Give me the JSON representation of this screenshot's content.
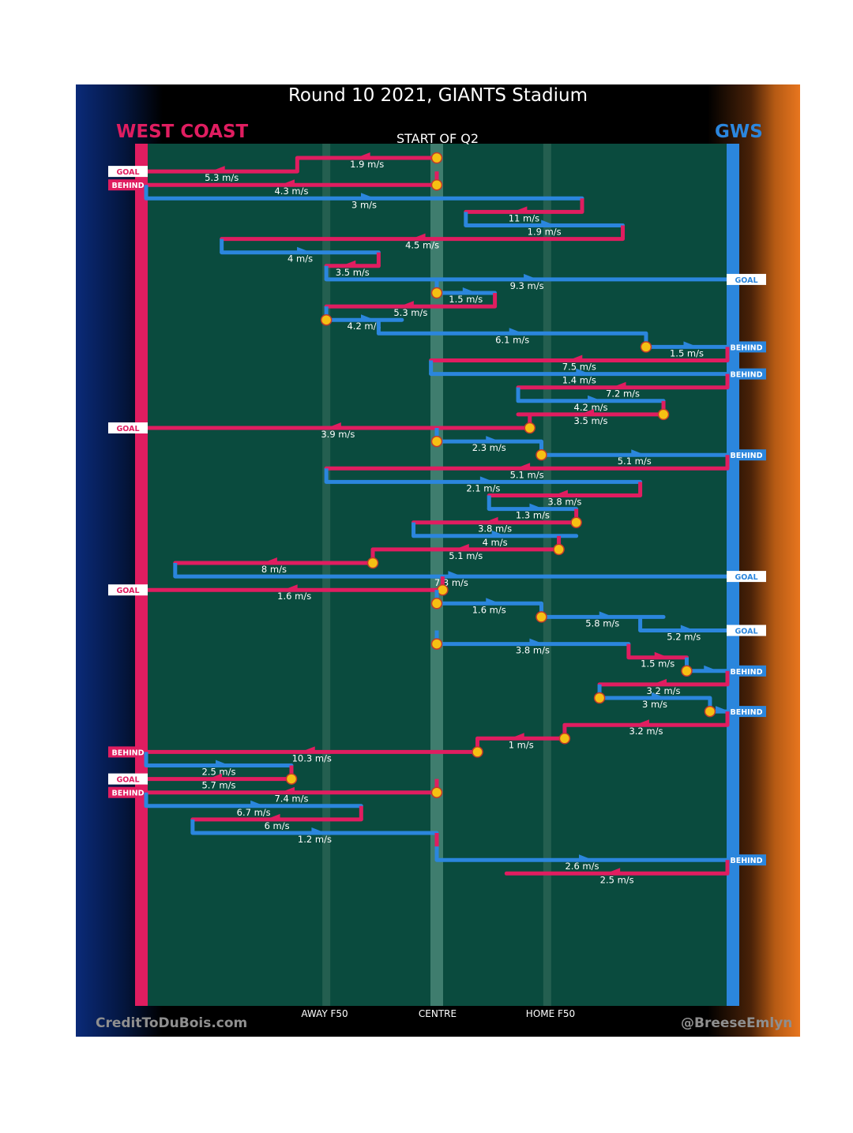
{
  "title": "Round 10 2021, GIANTS Stadium",
  "subtitle": "START OF Q2",
  "teams": {
    "left": "WEST COAST",
    "right": "GWS"
  },
  "zones": {
    "away": "AWAY F50",
    "centre": "CENTRE",
    "home": "HOME F50"
  },
  "credits": {
    "left": "CreditToDuBois.com",
    "right": "@BreeseEmlyn"
  },
  "colors": {
    "west_coast": "#e01d60",
    "gws": "#2b86dd",
    "field": "#0a4b3e",
    "stoppage": "#f5c013"
  },
  "chart_data": {
    "type": "ball-movement-chain",
    "description": "Vertical field with WEST COAST goal at left, GWS goal at right; chains of possession with average speed labels",
    "field_position_scale": {
      "left_goal": 0,
      "away_f50": 0.31,
      "centre": 0.5,
      "home_f50": 0.69,
      "right_goal": 1
    },
    "chains": [
      {
        "team": "WEST COAST",
        "start": 0.5,
        "points": [
          0.5,
          0.26,
          0.26
        ],
        "speed": "1.9 m/s",
        "start_stoppage": true
      },
      {
        "team": "WEST COAST",
        "points": [
          0.26,
          0.0
        ],
        "speed": "5.3 m/s",
        "result": "GOAL"
      },
      {
        "team": "WEST COAST",
        "points": [
          0.5,
          0.0
        ],
        "speed": "4.3 m/s",
        "result": "BEHIND",
        "start_stoppage": true
      },
      {
        "team": "GWS",
        "points": [
          0.0,
          0.75
        ],
        "speed": "3 m/s"
      },
      {
        "team": "WEST COAST",
        "points": [
          0.75,
          0.55
        ],
        "speed": "11 m/s"
      },
      {
        "team": "GWS",
        "points": [
          0.55,
          0.82
        ],
        "speed": "1.9 m/s"
      },
      {
        "team": "WEST COAST",
        "points": [
          0.82,
          0.13
        ],
        "speed": "4.5 m/s"
      },
      {
        "team": "GWS",
        "points": [
          0.13,
          0.4
        ],
        "speed": "4 m/s"
      },
      {
        "team": "WEST COAST",
        "points": [
          0.4,
          0.31
        ],
        "speed": "3.5 m/s"
      },
      {
        "team": "GWS",
        "points": [
          0.31,
          1.0
        ],
        "speed": "9.3 m/s",
        "result": "GOAL"
      },
      {
        "team": "GWS",
        "points": [
          0.5,
          0.6
        ],
        "speed": "1.5 m/s",
        "start_stoppage": true
      },
      {
        "team": "WEST COAST",
        "points": [
          0.6,
          0.31
        ],
        "speed": "5.3 m/s"
      },
      {
        "team": "GWS",
        "points": [
          0.31,
          0.44
        ],
        "speed": "4.2 m/s",
        "start_stoppage": true
      },
      {
        "team": "GWS",
        "points": [
          0.4,
          0.86
        ],
        "speed": "6.1 m/s"
      },
      {
        "team": "GWS",
        "points": [
          0.86,
          1.0
        ],
        "speed": "1.5 m/s",
        "result": "BEHIND",
        "start_stoppage": true
      },
      {
        "team": "WEST COAST",
        "points": [
          1.0,
          0.49
        ],
        "speed": "7.5 m/s"
      },
      {
        "team": "GWS",
        "points": [
          0.49,
          1.0
        ],
        "speed": "1.4 m/s",
        "result": "BEHIND"
      },
      {
        "team": "WEST COAST",
        "points": [
          1.0,
          0.64
        ],
        "speed": "7.2 m/s"
      },
      {
        "team": "GWS",
        "points": [
          0.64,
          0.89
        ],
        "speed": "4.2 m/s"
      },
      {
        "team": "WEST COAST",
        "points": [
          0.89,
          0.64
        ],
        "speed": "3.5 m/s",
        "start_stoppage": true
      },
      {
        "team": "WEST COAST",
        "points": [
          0.66,
          0.0
        ],
        "speed": "3.9 m/s",
        "result": "GOAL",
        "start_stoppage": true
      },
      {
        "team": "GWS",
        "points": [
          0.5,
          0.68
        ],
        "speed": "2.3 m/s",
        "start_stoppage": true
      },
      {
        "team": "GWS",
        "points": [
          0.68,
          1.0
        ],
        "speed": "5.1 m/s",
        "result": "BEHIND",
        "start_stoppage": true
      },
      {
        "team": "WEST COAST",
        "points": [
          1.0,
          0.31
        ],
        "speed": "5.1 m/s"
      },
      {
        "team": "GWS",
        "points": [
          0.31,
          0.85
        ],
        "speed": "2.1 m/s"
      },
      {
        "team": "WEST COAST",
        "points": [
          0.85,
          0.59
        ],
        "speed": "3.8 m/s"
      },
      {
        "team": "GWS",
        "points": [
          0.59,
          0.74
        ],
        "speed": "1.3 m/s"
      },
      {
        "team": "WEST COAST",
        "points": [
          0.74,
          0.46
        ],
        "speed": "3.8 m/s",
        "start_stoppage": true
      },
      {
        "team": "GWS",
        "points": [
          0.46,
          0.74
        ],
        "speed": "4 m/s"
      },
      {
        "team": "WEST COAST",
        "points": [
          0.71,
          0.39
        ],
        "speed": "5.1 m/s",
        "start_stoppage": true
      },
      {
        "team": "WEST COAST",
        "points": [
          0.39,
          0.05
        ],
        "speed": "8 m/s",
        "start_stoppage": true
      },
      {
        "team": "GWS",
        "points": [
          0.05,
          1.0
        ],
        "speed": "7.3 m/s",
        "result": "GOAL"
      },
      {
        "team": "WEST COAST",
        "points": [
          0.51,
          0.0
        ],
        "speed": "1.6 m/s",
        "result": "GOAL",
        "start_stoppage": true
      },
      {
        "team": "GWS",
        "points": [
          0.5,
          0.68
        ],
        "speed": "1.6 m/s",
        "start_stoppage": true
      },
      {
        "team": "GWS",
        "points": [
          0.68,
          0.89
        ],
        "speed": "5.8 m/s",
        "start_stoppage": true
      },
      {
        "team": "GWS",
        "points": [
          0.85,
          1.0
        ],
        "speed": "5.2 m/s",
        "result": "GOAL"
      },
      {
        "team": "GWS",
        "points": [
          0.5,
          0.83
        ],
        "speed": "3.8 m/s",
        "start_stoppage": true
      },
      {
        "team": "WEST COAST",
        "points": [
          0.83,
          0.93
        ],
        "speed": "1.5 m/s"
      },
      {
        "team": "GWS",
        "points": [
          0.93,
          1.0
        ],
        "speed": "",
        "result": "BEHIND",
        "start_stoppage": true
      },
      {
        "team": "WEST COAST",
        "points": [
          1.0,
          0.78
        ],
        "speed": "3.2 m/s"
      },
      {
        "team": "GWS",
        "points": [
          0.78,
          0.97
        ],
        "speed": "3 m/s",
        "start_stoppage": true
      },
      {
        "team": "GWS",
        "points": [
          0.97,
          1.0
        ],
        "speed": "",
        "result": "BEHIND",
        "start_stoppage": true
      },
      {
        "team": "WEST COAST",
        "points": [
          1.0,
          0.72
        ],
        "speed": "3.2 m/s"
      },
      {
        "team": "WEST COAST",
        "points": [
          0.72,
          0.57
        ],
        "speed": "1 m/s",
        "start_stoppage": true
      },
      {
        "team": "WEST COAST",
        "points": [
          0.57,
          0.0
        ],
        "speed": "10.3 m/s",
        "result": "BEHIND",
        "start_stoppage": true
      },
      {
        "team": "GWS",
        "points": [
          0.0,
          0.25
        ],
        "speed": "2.5 m/s"
      },
      {
        "team": "WEST COAST",
        "points": [
          0.25,
          0.0
        ],
        "speed": "5.7 m/s",
        "result": "GOAL",
        "start_stoppage": true
      },
      {
        "team": "WEST COAST",
        "points": [
          0.5,
          0.0
        ],
        "speed": "7.4 m/s",
        "result": "BEHIND",
        "start_stoppage": true
      },
      {
        "team": "GWS",
        "points": [
          0.0,
          0.37
        ],
        "speed": "6.7 m/s"
      },
      {
        "team": "WEST COAST",
        "points": [
          0.37,
          0.08
        ],
        "speed": "6 m/s"
      },
      {
        "team": "GWS",
        "points": [
          0.08,
          0.5
        ],
        "speed": "1.2 m/s"
      },
      {
        "team": "WEST COAST",
        "points": [
          0.5,
          0.5
        ],
        "speed": ""
      },
      {
        "team": "GWS",
        "points": [
          0.5,
          1.0
        ],
        "speed": "2.6 m/s",
        "result": "BEHIND"
      },
      {
        "team": "WEST COAST",
        "points": [
          1.0,
          0.62
        ],
        "speed": "2.5 m/s"
      }
    ]
  }
}
